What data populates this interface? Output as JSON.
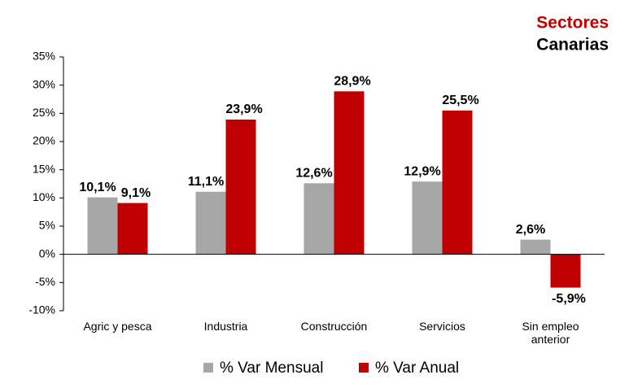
{
  "chart_data": {
    "type": "bar",
    "title": "Sectores",
    "subtitle": "Canarias",
    "categories": [
      "Agric y pesca",
      "Industria",
      "Construcción",
      "Servicios",
      "Sin empleo anterior"
    ],
    "series": [
      {
        "name": "% Var Mensual",
        "color": "#a6a6a6",
        "values": [
          10.1,
          11.1,
          12.6,
          12.9,
          2.6
        ],
        "value_labels": [
          "10,1%",
          "11,1%",
          "12,6%",
          "12,9%",
          "2,6%"
        ]
      },
      {
        "name": "% Var Anual",
        "color": "#c00000",
        "values": [
          9.1,
          23.9,
          28.9,
          25.5,
          -5.9
        ],
        "value_labels": [
          "9,1%",
          "23,9%",
          "28,9%",
          "25,5%",
          "-5,9%"
        ]
      }
    ],
    "ylim": [
      -10,
      35
    ],
    "yticks": [
      {
        "value": -10,
        "label": "-10%"
      },
      {
        "value": -5,
        "label": "-5%"
      },
      {
        "value": 0,
        "label": "0%"
      },
      {
        "value": 5,
        "label": "5%"
      },
      {
        "value": 10,
        "label": "10%"
      },
      {
        "value": 15,
        "label": "15%"
      },
      {
        "value": 20,
        "label": "20%"
      },
      {
        "value": 25,
        "label": "25%"
      },
      {
        "value": 30,
        "label": "30%"
      },
      {
        "value": 35,
        "label": "35%"
      }
    ],
    "grid": false,
    "legend": "bottom"
  }
}
